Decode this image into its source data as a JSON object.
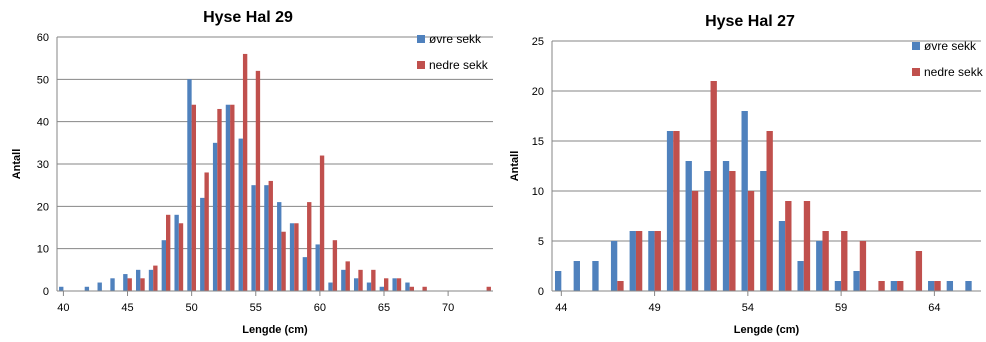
{
  "chart_data": [
    {
      "type": "bar",
      "title": "Hyse Hal 29",
      "xlabel": "Lengde (cm)",
      "ylabel": "Antall",
      "xlim": [
        40,
        73
      ],
      "ylim": [
        0,
        60
      ],
      "xticks": [
        40,
        45,
        50,
        55,
        60,
        65,
        70
      ],
      "yticks": [
        0,
        10,
        20,
        30,
        40,
        50,
        60
      ],
      "grid": "horizontal",
      "legend_position": "top-right",
      "series": [
        {
          "name": "øvre sekk",
          "color": "#4f81bd",
          "x": [
            40,
            41,
            42,
            43,
            44,
            45,
            46,
            47,
            48,
            49,
            50,
            51,
            52,
            53,
            54,
            55,
            56,
            57,
            58,
            59,
            60,
            61,
            62,
            63,
            64,
            65,
            66,
            67,
            68,
            69,
            70,
            71,
            72,
            73
          ],
          "values": [
            1,
            0,
            1,
            2,
            3,
            4,
            5,
            5,
            12,
            18,
            50,
            22,
            35,
            44,
            36,
            25,
            25,
            21,
            16,
            8,
            11,
            2,
            5,
            3,
            2,
            1,
            3,
            2,
            0,
            0,
            0,
            0,
            0,
            0
          ]
        },
        {
          "name": "nedre sekk",
          "color": "#c0504d",
          "x": [
            40,
            41,
            42,
            43,
            44,
            45,
            46,
            47,
            48,
            49,
            50,
            51,
            52,
            53,
            54,
            55,
            56,
            57,
            58,
            59,
            60,
            61,
            62,
            63,
            64,
            65,
            66,
            67,
            68,
            69,
            70,
            71,
            72,
            73
          ],
          "values": [
            0,
            0,
            0,
            0,
            0,
            3,
            3,
            6,
            18,
            16,
            44,
            28,
            43,
            44,
            56,
            52,
            26,
            14,
            16,
            21,
            32,
            12,
            7,
            5,
            5,
            3,
            3,
            1,
            1,
            0,
            0,
            0,
            0,
            1
          ]
        }
      ]
    },
    {
      "type": "bar",
      "title": "Hyse Hal 27",
      "xlabel": "Lengde (cm)",
      "ylabel": "Antall",
      "xlim": [
        44,
        66
      ],
      "ylim": [
        0,
        25
      ],
      "xticks": [
        44,
        49,
        54,
        59,
        64
      ],
      "yticks": [
        0,
        5,
        10,
        15,
        20,
        25
      ],
      "grid": "horizontal",
      "legend_position": "top-right",
      "series": [
        {
          "name": "øvre sekk",
          "color": "#4f81bd",
          "x": [
            44,
            45,
            46,
            47,
            48,
            49,
            50,
            51,
            52,
            53,
            54,
            55,
            56,
            57,
            58,
            59,
            60,
            61,
            62,
            63,
            64,
            65,
            66
          ],
          "values": [
            2,
            3,
            3,
            5,
            6,
            6,
            16,
            13,
            12,
            13,
            18,
            12,
            7,
            3,
            5,
            1,
            2,
            0,
            1,
            0,
            1,
            1,
            1
          ]
        },
        {
          "name": "nedre sekk",
          "color": "#c0504d",
          "x": [
            44,
            45,
            46,
            47,
            48,
            49,
            50,
            51,
            52,
            53,
            54,
            55,
            56,
            57,
            58,
            59,
            60,
            61,
            62,
            63,
            64,
            65,
            66
          ],
          "values": [
            0,
            0,
            0,
            1,
            6,
            6,
            16,
            10,
            21,
            12,
            10,
            16,
            9,
            9,
            6,
            6,
            5,
            1,
            1,
            4,
            1,
            0,
            0
          ]
        }
      ]
    }
  ]
}
